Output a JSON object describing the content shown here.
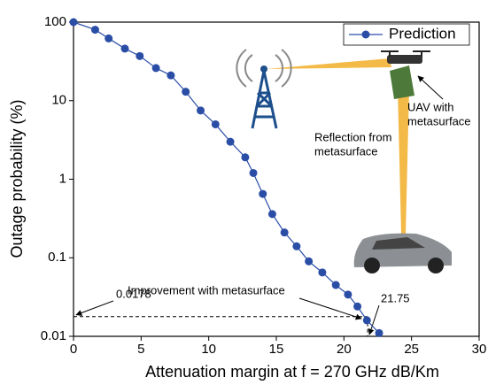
{
  "chart_data": {
    "type": "line",
    "x_label": "Attenuation margin at f = 270 GHz dB/Km",
    "y_label": "Outage probability (%)",
    "xlim": [
      0,
      30
    ],
    "xticks": [
      0,
      5,
      10,
      15,
      20,
      25,
      30
    ],
    "ylim": [
      0.01,
      100
    ],
    "yticks": [
      0.01,
      0.1,
      1,
      10,
      100
    ],
    "log_y": true,
    "legend": "top-right",
    "series": [
      {
        "name": "Prediction",
        "color": "#2a4da6",
        "x": [
          0,
          1.6,
          2.6,
          3.8,
          4.9,
          6.1,
          7.2,
          8.3,
          9.4,
          10.5,
          11.6,
          12.7,
          13.3,
          14.0,
          14.7,
          15.6,
          16.5,
          17.4,
          18.4,
          19.4,
          20.3,
          21.0,
          21.7,
          22.6
        ],
        "values": [
          100,
          80,
          62,
          46,
          37,
          26,
          21,
          13,
          7.5,
          5,
          3,
          1.9,
          1.2,
          0.65,
          0.36,
          0.21,
          0.14,
          0.09,
          0.065,
          0.045,
          0.034,
          0.024,
          0.016,
          0.011
        ]
      }
    ],
    "reference": {
      "x": 21.75,
      "y": 0.0178
    },
    "annotations": [
      "Improvement with metasurface",
      "UAV with",
      "metasurface",
      "Reflection from",
      "metasurface"
    ]
  }
}
